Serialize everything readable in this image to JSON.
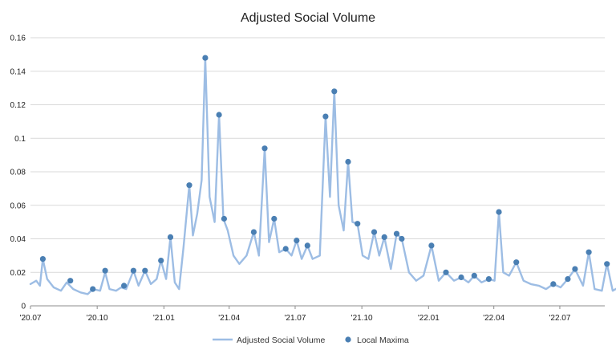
{
  "chart_data": {
    "type": "line",
    "title": "Adjusted Social Volume",
    "xlabel": "",
    "ylabel": "",
    "x_range": [
      "2020-07",
      "2022-09"
    ],
    "ylim": [
      0,
      0.16
    ],
    "x_tick_labels": [
      "'20.07",
      "'20.10",
      "'21.01",
      "'21.04",
      "'21.07",
      "'21.10",
      "'22.01",
      "'22.04",
      "'22.07"
    ],
    "y_tick_labels": [
      "0",
      "0.02",
      "0.04",
      "0.06",
      "0.08",
      "0.1",
      "0.12",
      "0.14",
      "0.16"
    ],
    "grid": "horizontal",
    "legend_position": "bottom",
    "colors": {
      "line": "#9dbde4",
      "maxima": "#4a7fb3",
      "grid": "#d9d9d9",
      "axis": "#8c8c8c"
    },
    "series": [
      {
        "name": "Adjusted Social Volume",
        "type": "line",
        "points": [
          [
            "2020-07-01",
            0.013
          ],
          [
            "2020-07-09",
            0.015
          ],
          [
            "2020-07-14",
            0.012
          ],
          [
            "2020-07-18",
            0.028
          ],
          [
            "2020-07-24",
            0.016
          ],
          [
            "2020-08-02",
            0.011
          ],
          [
            "2020-08-12",
            0.009
          ],
          [
            "2020-08-20",
            0.014
          ],
          [
            "2020-08-29",
            0.01
          ],
          [
            "2020-09-08",
            0.008
          ],
          [
            "2020-09-18",
            0.007
          ],
          [
            "2020-09-25",
            0.01
          ],
          [
            "2020-10-05",
            0.009
          ],
          [
            "2020-10-12",
            0.02
          ],
          [
            "2020-10-18",
            0.01
          ],
          [
            "2020-10-27",
            0.009
          ],
          [
            "2020-11-03",
            0.011
          ],
          [
            "2020-11-10",
            0.01
          ],
          [
            "2020-11-20",
            0.021
          ],
          [
            "2020-11-27",
            0.012
          ],
          [
            "2020-12-06",
            0.021
          ],
          [
            "2020-12-14",
            0.013
          ],
          [
            "2020-12-22",
            0.016
          ],
          [
            "2020-12-28",
            0.027
          ],
          [
            "2021-01-04",
            0.016
          ],
          [
            "2021-01-10",
            0.041
          ],
          [
            "2021-01-16",
            0.014
          ],
          [
            "2021-01-22",
            0.01
          ],
          [
            "2021-01-28",
            0.035
          ],
          [
            "2021-02-05",
            0.072
          ],
          [
            "2021-02-10",
            0.042
          ],
          [
            "2021-02-16",
            0.055
          ],
          [
            "2021-02-22",
            0.075
          ],
          [
            "2021-02-27",
            0.148
          ],
          [
            "2021-03-05",
            0.065
          ],
          [
            "2021-03-12",
            0.05
          ],
          [
            "2021-03-18",
            0.114
          ],
          [
            "2021-03-24",
            0.052
          ],
          [
            "2021-03-30",
            0.045
          ],
          [
            "2021-04-07",
            0.03
          ],
          [
            "2021-04-15",
            0.025
          ],
          [
            "2021-04-25",
            0.03
          ],
          [
            "2021-05-05",
            0.044
          ],
          [
            "2021-05-12",
            0.03
          ],
          [
            "2021-05-20",
            0.094
          ],
          [
            "2021-05-26",
            0.038
          ],
          [
            "2021-06-02",
            0.052
          ],
          [
            "2021-06-09",
            0.032
          ],
          [
            "2021-06-18",
            0.034
          ],
          [
            "2021-06-26",
            0.03
          ],
          [
            "2021-07-03",
            0.039
          ],
          [
            "2021-07-10",
            0.028
          ],
          [
            "2021-07-18",
            0.036
          ],
          [
            "2021-07-25",
            0.028
          ],
          [
            "2021-08-04",
            0.03
          ],
          [
            "2021-08-12",
            0.113
          ],
          [
            "2021-08-18",
            0.065
          ],
          [
            "2021-08-24",
            0.128
          ],
          [
            "2021-08-30",
            0.06
          ],
          [
            "2021-09-06",
            0.045
          ],
          [
            "2021-09-12",
            0.086
          ],
          [
            "2021-09-18",
            0.05
          ],
          [
            "2021-09-25",
            0.049
          ],
          [
            "2021-10-02",
            0.03
          ],
          [
            "2021-10-10",
            0.028
          ],
          [
            "2021-10-18",
            0.044
          ],
          [
            "2021-10-25",
            0.03
          ],
          [
            "2021-11-01",
            0.041
          ],
          [
            "2021-11-10",
            0.022
          ],
          [
            "2021-11-18",
            0.043
          ],
          [
            "2021-11-25",
            0.04
          ],
          [
            "2021-12-05",
            0.02
          ],
          [
            "2021-12-15",
            0.015
          ],
          [
            "2021-12-25",
            0.018
          ],
          [
            "2022-01-05",
            0.036
          ],
          [
            "2022-01-15",
            0.015
          ],
          [
            "2022-01-25",
            0.02
          ],
          [
            "2022-02-05",
            0.015
          ],
          [
            "2022-02-15",
            0.017
          ],
          [
            "2022-02-25",
            0.014
          ],
          [
            "2022-03-05",
            0.018
          ],
          [
            "2022-03-15",
            0.014
          ],
          [
            "2022-03-25",
            0.016
          ],
          [
            "2022-04-02",
            0.015
          ],
          [
            "2022-04-08",
            0.056
          ],
          [
            "2022-04-14",
            0.02
          ],
          [
            "2022-04-22",
            0.018
          ],
          [
            "2022-05-02",
            0.026
          ],
          [
            "2022-05-12",
            0.015
          ],
          [
            "2022-05-22",
            0.013
          ],
          [
            "2022-06-02",
            0.012
          ],
          [
            "2022-06-12",
            0.01
          ],
          [
            "2022-06-22",
            0.013
          ],
          [
            "2022-07-02",
            0.011
          ],
          [
            "2022-07-12",
            0.016
          ],
          [
            "2022-07-22",
            0.022
          ],
          [
            "2022-08-02",
            0.012
          ],
          [
            "2022-08-10",
            0.032
          ],
          [
            "2022-08-18",
            0.01
          ],
          [
            "2022-08-28",
            0.009
          ],
          [
            "2022-09-04",
            0.025
          ],
          [
            "2022-09-12",
            0.009
          ],
          [
            "2022-09-20",
            0.011
          ],
          [
            "2022-09-25",
            0.006
          ]
        ]
      },
      {
        "name": "Local Maxima",
        "type": "scatter",
        "points": [
          [
            "2020-07-18",
            0.028
          ],
          [
            "2020-08-25",
            0.015
          ],
          [
            "2020-09-25",
            0.01
          ],
          [
            "2020-10-12",
            0.021
          ],
          [
            "2020-11-07",
            0.012
          ],
          [
            "2020-11-20",
            0.021
          ],
          [
            "2020-12-06",
            0.021
          ],
          [
            "2020-12-28",
            0.027
          ],
          [
            "2021-01-10",
            0.041
          ],
          [
            "2021-02-05",
            0.072
          ],
          [
            "2021-02-27",
            0.148
          ],
          [
            "2021-03-18",
            0.114
          ],
          [
            "2021-03-25",
            0.052
          ],
          [
            "2021-05-05",
            0.044
          ],
          [
            "2021-05-20",
            0.094
          ],
          [
            "2021-06-02",
            0.052
          ],
          [
            "2021-06-18",
            0.034
          ],
          [
            "2021-07-03",
            0.039
          ],
          [
            "2021-07-18",
            0.036
          ],
          [
            "2021-08-12",
            0.113
          ],
          [
            "2021-08-24",
            0.128
          ],
          [
            "2021-09-12",
            0.086
          ],
          [
            "2021-09-25",
            0.049
          ],
          [
            "2021-10-18",
            0.044
          ],
          [
            "2021-11-01",
            0.041
          ],
          [
            "2021-11-18",
            0.043
          ],
          [
            "2021-11-25",
            0.04
          ],
          [
            "2022-01-05",
            0.036
          ],
          [
            "2022-01-25",
            0.02
          ],
          [
            "2022-02-15",
            0.017
          ],
          [
            "2022-03-05",
            0.018
          ],
          [
            "2022-03-25",
            0.016
          ],
          [
            "2022-04-08",
            0.056
          ],
          [
            "2022-05-02",
            0.026
          ],
          [
            "2022-06-22",
            0.013
          ],
          [
            "2022-07-12",
            0.016
          ],
          [
            "2022-07-22",
            0.022
          ],
          [
            "2022-08-10",
            0.032
          ],
          [
            "2022-09-04",
            0.025
          ]
        ]
      }
    ]
  }
}
